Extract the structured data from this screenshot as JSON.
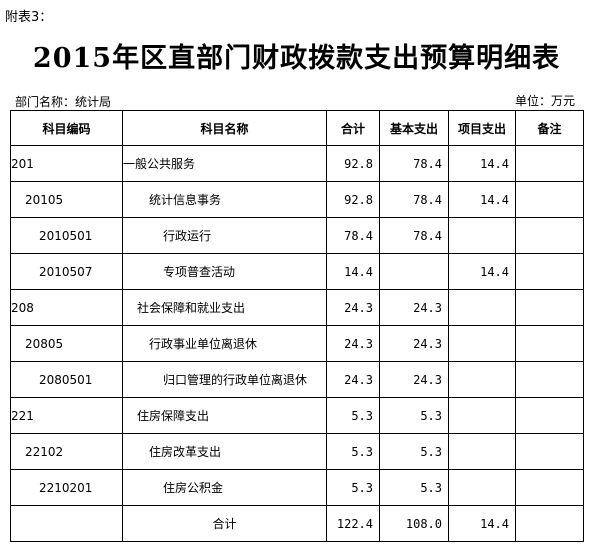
{
  "header": {
    "attachment": "附表3：",
    "title": "2015年区直部门财政拨款支出预算明细表",
    "department": "部门名称：统计局",
    "unit": "单位：万元"
  },
  "columns": [
    "科目编码",
    "科目名称",
    "合计",
    "基本支出",
    "项目支出",
    "备注"
  ],
  "rows": [
    {
      "level": 1,
      "code": "201",
      "name": "一般公共服务",
      "total": "92.8",
      "basic": "78.4",
      "project": "14.4",
      "note": ""
    },
    {
      "level": 2,
      "code": "20105",
      "name": "统计信息事务",
      "total": "92.8",
      "basic": "78.4",
      "project": "14.4",
      "note": ""
    },
    {
      "level": 3,
      "code": "2010501",
      "name": "行政运行",
      "total": "78.4",
      "basic": "78.4",
      "project": "",
      "note": ""
    },
    {
      "level": 3,
      "code": "2010507",
      "name": "专项普查活动",
      "total": "14.4",
      "basic": "",
      "project": "14.4",
      "note": ""
    },
    {
      "level": 1,
      "code": "208",
      "name": "社会保障和就业支出",
      "total": "24.3",
      "basic": "24.3",
      "project": "",
      "note": ""
    },
    {
      "level": 2,
      "code": "20805",
      "name": "行政事业单位离退休",
      "total": "24.3",
      "basic": "24.3",
      "project": "",
      "note": ""
    },
    {
      "level": 3,
      "code": "2080501",
      "name": "归口管理的行政单位离退休",
      "total": "24.3",
      "basic": "24.3",
      "project": "",
      "note": ""
    },
    {
      "level": 1,
      "code": "221",
      "name": "住房保障支出",
      "total": "5.3",
      "basic": "5.3",
      "project": "",
      "note": ""
    },
    {
      "level": 2,
      "code": "22102",
      "name": "住房改革支出",
      "total": "5.3",
      "basic": "5.3",
      "project": "",
      "note": ""
    },
    {
      "level": 3,
      "code": "2210201",
      "name": "住房公积金",
      "total": "5.3",
      "basic": "5.3",
      "project": "",
      "note": ""
    }
  ],
  "total_row": {
    "label": "合计",
    "total": "122.4",
    "basic": "108.0",
    "project": "14.4",
    "note": ""
  }
}
